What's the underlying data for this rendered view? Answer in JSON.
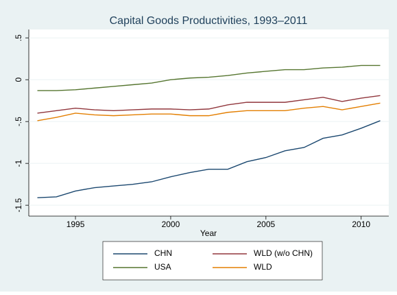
{
  "chart_data": {
    "type": "line",
    "title": "Capital Goods Productivities, 1993–2011",
    "x_label": "Year",
    "x": [
      1993,
      1994,
      1995,
      1996,
      1997,
      1998,
      1999,
      2000,
      2001,
      2002,
      2003,
      2004,
      2005,
      2006,
      2007,
      2008,
      2009,
      2010,
      2011
    ],
    "series": [
      {
        "name": "CHN",
        "color": "#1a476f",
        "values": [
          -1.41,
          -1.4,
          -1.33,
          -1.29,
          -1.27,
          -1.25,
          -1.22,
          -1.16,
          -1.11,
          -1.07,
          -1.07,
          -0.98,
          -0.93,
          -0.85,
          -0.81,
          -0.7,
          -0.66,
          -0.58,
          -0.49
        ]
      },
      {
        "name": "WLD (w/o CHN)",
        "color": "#90353b",
        "values": [
          -0.4,
          -0.37,
          -0.34,
          -0.36,
          -0.37,
          -0.36,
          -0.35,
          -0.35,
          -0.36,
          -0.35,
          -0.3,
          -0.27,
          -0.27,
          -0.27,
          -0.24,
          -0.21,
          -0.26,
          -0.22,
          -0.19
        ]
      },
      {
        "name": "USA",
        "color": "#55752f",
        "values": [
          -0.13,
          -0.13,
          -0.12,
          -0.1,
          -0.08,
          -0.06,
          -0.04,
          0.0,
          0.02,
          0.03,
          0.05,
          0.08,
          0.1,
          0.12,
          0.12,
          0.14,
          0.15,
          0.17,
          0.17
        ]
      },
      {
        "name": "WLD",
        "color": "#e37e00",
        "values": [
          -0.49,
          -0.45,
          -0.4,
          -0.42,
          -0.43,
          -0.42,
          -0.41,
          -0.41,
          -0.43,
          -0.43,
          -0.39,
          -0.37,
          -0.37,
          -0.37,
          -0.34,
          -0.32,
          -0.36,
          -0.32,
          -0.28
        ]
      }
    ],
    "xlim": [
      1992.55,
      2011.45
    ],
    "xticks": [
      1995,
      2000,
      2005,
      2010
    ],
    "ylim": [
      -1.63,
      0.6
    ],
    "yticks": [
      {
        "value": -1.5,
        "label": "-1.5"
      },
      -1,
      {
        "value": -0.5,
        "label": "-.5"
      },
      0,
      {
        "value": 0.5,
        "label": ".5"
      }
    ],
    "grid": true,
    "legend_position": "bottom"
  }
}
